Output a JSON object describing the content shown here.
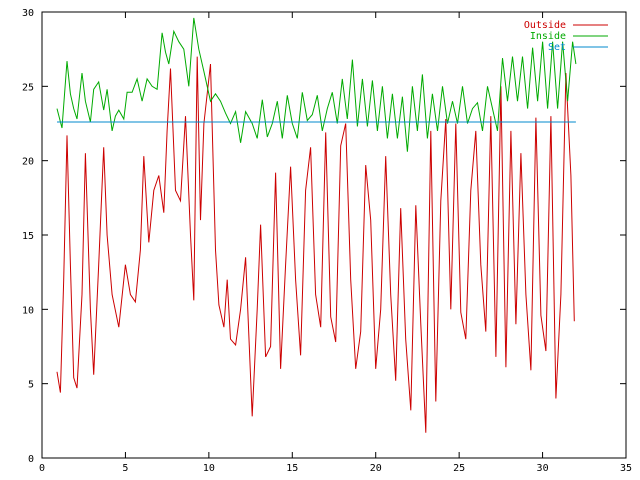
{
  "chart_data": {
    "type": "line",
    "title": "",
    "xlabel": "",
    "ylabel": "",
    "xlim": [
      0,
      35
    ],
    "ylim": [
      0,
      30
    ],
    "xticks": [
      0,
      5,
      10,
      15,
      20,
      25,
      30,
      35
    ],
    "yticks": [
      0,
      5,
      10,
      15,
      20,
      25,
      30
    ],
    "grid": false,
    "legend_position": "top-right",
    "series": [
      {
        "name": "Outside",
        "color": "#cc0000",
        "x": [
          0.9,
          1.1,
          1.3,
          1.5,
          1.7,
          1.9,
          2.1,
          2.4,
          2.6,
          2.9,
          3.1,
          3.4,
          3.7,
          3.9,
          4.2,
          4.6,
          5.0,
          5.3,
          5.6,
          5.9,
          6.1,
          6.4,
          6.7,
          7.0,
          7.3,
          7.5,
          7.7,
          8.0,
          8.3,
          8.6,
          8.9,
          9.1,
          9.3,
          9.5,
          9.7,
          10.1,
          10.4,
          10.6,
          10.9,
          11.1,
          11.3,
          11.6,
          11.9,
          12.2,
          12.6,
          12.9,
          13.1,
          13.4,
          13.7,
          14.0,
          14.3,
          14.6,
          14.9,
          15.2,
          15.5,
          15.8,
          16.1,
          16.4,
          16.7,
          17.0,
          17.3,
          17.6,
          17.9,
          18.2,
          18.5,
          18.8,
          19.1,
          19.4,
          19.7,
          20.0,
          20.3,
          20.6,
          20.9,
          21.2,
          21.5,
          21.8,
          22.1,
          22.4,
          22.7,
          23.0,
          23.3,
          23.6,
          23.9,
          24.2,
          24.5,
          24.8,
          25.1,
          25.4,
          25.7,
          26.0,
          26.3,
          26.6,
          26.9,
          27.2,
          27.5,
          27.8,
          28.1,
          28.4,
          28.7,
          29.0,
          29.3,
          29.6,
          29.9,
          30.2,
          30.5,
          30.8,
          31.1,
          31.4,
          31.7,
          31.9
        ],
        "values": [
          5.8,
          4.4,
          12,
          21.7,
          13,
          5.4,
          4.7,
          11,
          20.5,
          10,
          5.6,
          13,
          20.9,
          15,
          11,
          8.8,
          13,
          11,
          10.5,
          14,
          20.3,
          14.5,
          18,
          19,
          16.5,
          22,
          26.2,
          18,
          17.3,
          23,
          15,
          10.6,
          27,
          16,
          22.5,
          26.5,
          14,
          10.3,
          8.8,
          12,
          8.0,
          7.6,
          10,
          13.5,
          2.8,
          10,
          15.7,
          6.8,
          7.5,
          19.2,
          6.0,
          13,
          19.6,
          12,
          6.9,
          18,
          20.9,
          11,
          8.8,
          21.9,
          9.5,
          7.8,
          21,
          22.5,
          12,
          6.0,
          8.5,
          19.7,
          16,
          6.0,
          10,
          20.3,
          11,
          5.2,
          16.8,
          8.0,
          3.2,
          17,
          9.0,
          1.7,
          22,
          3.8,
          17.3,
          22.8,
          10,
          22.5,
          9.8,
          8.0,
          18,
          22,
          13,
          8.5,
          23,
          6.8,
          25,
          6.1,
          22,
          9.0,
          20.5,
          11,
          5.9,
          22.9,
          9.6,
          7.2,
          23.0,
          4.0,
          11,
          25.9,
          19,
          9.2
        ]
      },
      {
        "name": "Inside",
        "color": "#00aa00",
        "x": [
          0.9,
          1.2,
          1.5,
          1.7,
          1.9,
          2.1,
          2.4,
          2.6,
          2.9,
          3.1,
          3.4,
          3.7,
          3.9,
          4.2,
          4.4,
          4.6,
          4.9,
          5.1,
          5.4,
          5.7,
          6.0,
          6.3,
          6.6,
          6.9,
          7.2,
          7.4,
          7.6,
          7.9,
          8.2,
          8.5,
          8.8,
          9.1,
          9.4,
          9.7,
          10.1,
          10.4,
          10.7,
          11.0,
          11.3,
          11.6,
          11.9,
          12.2,
          12.6,
          12.9,
          13.2,
          13.5,
          13.8,
          14.1,
          14.4,
          14.7,
          15.0,
          15.3,
          15.6,
          15.9,
          16.2,
          16.5,
          16.8,
          17.1,
          17.4,
          17.7,
          18.0,
          18.3,
          18.6,
          18.9,
          19.2,
          19.5,
          19.8,
          20.1,
          20.4,
          20.7,
          21.0,
          21.3,
          21.6,
          21.9,
          22.2,
          22.5,
          22.8,
          23.1,
          23.4,
          23.7,
          24.0,
          24.3,
          24.6,
          24.9,
          25.2,
          25.5,
          25.8,
          26.1,
          26.4,
          26.7,
          27.0,
          27.3,
          27.6,
          27.9,
          28.2,
          28.5,
          28.8,
          29.1,
          29.4,
          29.7,
          30.0,
          30.3,
          30.6,
          30.9,
          31.2,
          31.5,
          31.8,
          32.0
        ],
        "values": [
          23.5,
          22.2,
          26.7,
          24.5,
          23.5,
          22.8,
          25.9,
          24.0,
          22.6,
          24.8,
          25.3,
          23.4,
          24.8,
          22.0,
          23.0,
          23.4,
          22.8,
          24.6,
          24.6,
          25.5,
          24.0,
          25.5,
          25.0,
          24.8,
          28.6,
          27.3,
          26.5,
          28.7,
          28.0,
          27.5,
          25.0,
          29.6,
          27.5,
          26.0,
          24.0,
          24.5,
          24.0,
          23.2,
          22.5,
          23.3,
          21.2,
          23.3,
          22.5,
          21.5,
          24.1,
          21.6,
          22.5,
          24.0,
          21.5,
          24.4,
          22.5,
          21.5,
          24.6,
          22.7,
          23.1,
          24.4,
          22.0,
          23.5,
          24.6,
          22.5,
          25.5,
          22.8,
          26.8,
          22.3,
          25.5,
          22.3,
          25.4,
          22.0,
          25.0,
          21.5,
          24.5,
          21.5,
          24.3,
          20.6,
          25.0,
          22.0,
          25.8,
          21.5,
          24.5,
          22.0,
          25.0,
          22.5,
          24.0,
          22.5,
          25.0,
          22.5,
          23.5,
          23.9,
          22.0,
          25.0,
          23.5,
          22.0,
          26.9,
          24.0,
          27.0,
          24.0,
          27.0,
          23.5,
          27.6,
          24.0,
          28.0,
          23.5,
          28.0,
          23.5,
          28.0,
          24.0,
          28.0,
          26.5
        ]
      },
      {
        "name": "Set",
        "color": "#0088cc",
        "x": [
          0.9,
          32.0
        ],
        "values": [
          22.6,
          22.6
        ]
      }
    ]
  }
}
